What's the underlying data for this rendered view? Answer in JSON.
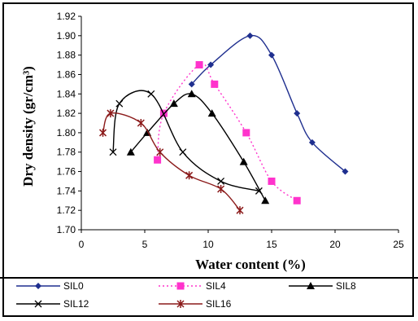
{
  "chart_data": {
    "type": "line",
    "xlabel": "Water content (%)",
    "ylabel": "Dry density (gr/cm³)",
    "xlim": [
      0,
      25
    ],
    "ylim": [
      1.7,
      1.92
    ],
    "x_ticks": [
      "0",
      "5",
      "10",
      "15",
      "20",
      "25"
    ],
    "y_ticks": [
      "1.70",
      "1.72",
      "1.74",
      "1.76",
      "1.78",
      "1.80",
      "1.82",
      "1.84",
      "1.86",
      "1.88",
      "1.90",
      "1.92"
    ],
    "grid": false,
    "legend_position": "bottom",
    "series": [
      {
        "name": "SIL0",
        "color": "#1f2f8f",
        "marker": "diamond",
        "dash": "solid",
        "x": [
          8.7,
          10.2,
          13.3,
          15.0,
          17.0,
          18.2,
          20.8
        ],
        "y": [
          1.85,
          1.87,
          1.9,
          1.88,
          1.82,
          1.79,
          1.76
        ]
      },
      {
        "name": "SIL4",
        "color": "#ff33cc",
        "marker": "square",
        "dash": "dotted",
        "x": [
          6.0,
          6.5,
          9.3,
          10.5,
          13.0,
          15.0,
          17.0
        ],
        "y": [
          1.772,
          1.82,
          1.87,
          1.85,
          1.8,
          1.75,
          1.73
        ]
      },
      {
        "name": "SIL8",
        "color": "#000000",
        "marker": "triangle",
        "dash": "solid",
        "x": [
          3.9,
          5.2,
          7.3,
          8.7,
          10.3,
          12.8,
          14.5
        ],
        "y": [
          1.78,
          1.8,
          1.83,
          1.84,
          1.82,
          1.77,
          1.73
        ]
      },
      {
        "name": "SIL12",
        "color": "#000000",
        "marker": "x",
        "dash": "solid",
        "x": [
          2.5,
          3.0,
          5.5,
          8.0,
          11.0,
          14.0
        ],
        "y": [
          1.78,
          1.83,
          1.84,
          1.78,
          1.75,
          1.74
        ]
      },
      {
        "name": "SIL16",
        "color": "#8b1a1a",
        "marker": "star",
        "dash": "solid",
        "x": [
          1.7,
          2.3,
          4.7,
          6.2,
          8.5,
          11.0,
          12.5
        ],
        "y": [
          1.8,
          1.82,
          1.81,
          1.78,
          1.756,
          1.742,
          1.72
        ]
      }
    ]
  }
}
